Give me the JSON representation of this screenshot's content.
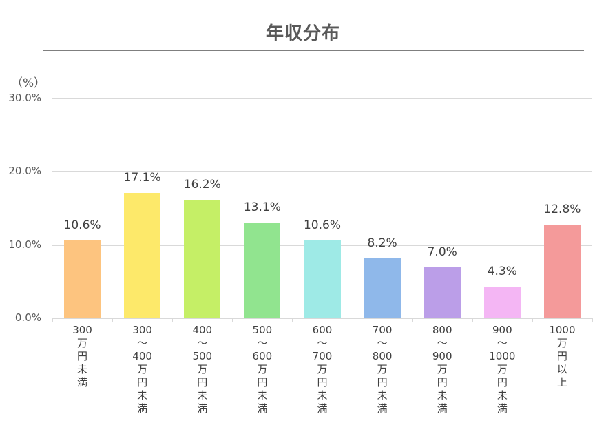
{
  "chart_data": {
    "type": "bar",
    "title": "年収分布",
    "ylabel": "（%）",
    "xlabel": "",
    "ylim": [
      0,
      30
    ],
    "yticks": [
      "0.0%",
      "10.0%",
      "20.0%",
      "30.0%"
    ],
    "grid": true,
    "legend": null,
    "categories": [
      "300万円未満",
      "300〜400万円未満",
      "400〜500万円未満",
      "500〜600万円未満",
      "600〜700万円未満",
      "700〜800万円未満",
      "800〜900万円未満",
      "900〜1000万円未満",
      "1000万円以上"
    ],
    "category_lines": [
      [
        "300",
        "万",
        "円",
        "未",
        "満"
      ],
      [
        "300",
        "〜",
        "400",
        "万",
        "円",
        "未",
        "満"
      ],
      [
        "400",
        "〜",
        "500",
        "万",
        "円",
        "未",
        "満"
      ],
      [
        "500",
        "〜",
        "600",
        "万",
        "円",
        "未",
        "満"
      ],
      [
        "600",
        "〜",
        "700",
        "万",
        "円",
        "未",
        "満"
      ],
      [
        "700",
        "〜",
        "800",
        "万",
        "円",
        "未",
        "満"
      ],
      [
        "800",
        "〜",
        "900",
        "万",
        "円",
        "未",
        "満"
      ],
      [
        "900",
        "〜",
        "1000",
        "万",
        "円",
        "未",
        "満"
      ],
      [
        "1000",
        "万",
        "円",
        "以",
        "上"
      ]
    ],
    "values": [
      10.6,
      17.1,
      16.2,
      13.1,
      10.6,
      8.2,
      7.0,
      4.3,
      12.8
    ],
    "value_labels": [
      "10.6%",
      "17.1%",
      "16.2%",
      "13.1%",
      "10.6%",
      "8.2%",
      "7.0%",
      "4.3%",
      "12.8%"
    ],
    "colors": [
      "#FDC47F",
      "#FDE96A",
      "#C5EF66",
      "#91E48F",
      "#9EEAE6",
      "#8FB8EA",
      "#BB9EE8",
      "#F4B6F4",
      "#F49A9A"
    ]
  }
}
